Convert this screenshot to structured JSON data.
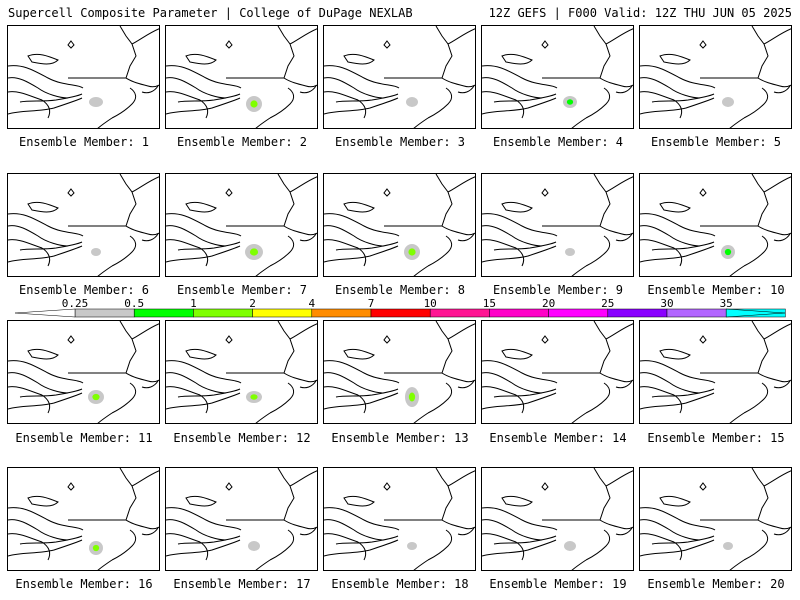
{
  "header": {
    "left": "Supercell Composite Parameter | College of DuPage NEXLAB",
    "right": "12Z GEFS | F000 Valid: 12Z THU JUN 05 2025"
  },
  "member_label_prefix": "Ensemble Member: ",
  "members": [
    {
      "number": "1",
      "field": [
        {
          "cx": "low",
          "cy": "mid",
          "level": 0.25
        }
      ]
    },
    {
      "number": "2",
      "field": [
        {
          "level": 1
        }
      ]
    },
    {
      "number": "3",
      "field": [
        {
          "level": 0.25
        }
      ]
    },
    {
      "number": "4",
      "field": [
        {
          "level": 0.5
        }
      ]
    },
    {
      "number": "5",
      "field": [
        {
          "level": 0.25
        }
      ]
    },
    {
      "number": "6",
      "field": [
        {
          "level": 0.25
        }
      ]
    },
    {
      "number": "7",
      "field": [
        {
          "level": 1
        }
      ]
    },
    {
      "number": "8",
      "field": [
        {
          "level": 1
        }
      ]
    },
    {
      "number": "9",
      "field": [
        {
          "level": 0.25
        }
      ]
    },
    {
      "number": "10",
      "field": [
        {
          "level": 0.5
        }
      ]
    },
    {
      "number": "11",
      "field": [
        {
          "level": 1
        }
      ]
    },
    {
      "number": "12",
      "field": [
        {
          "level": 1
        }
      ]
    },
    {
      "number": "13",
      "field": [
        {
          "level": 1
        }
      ]
    },
    {
      "number": "14",
      "field": []
    },
    {
      "number": "15",
      "field": []
    },
    {
      "number": "16",
      "field": [
        {
          "level": 1
        }
      ]
    },
    {
      "number": "17",
      "field": [
        {
          "level": 0.25
        }
      ]
    },
    {
      "number": "18",
      "field": [
        {
          "level": 0.25
        }
      ]
    },
    {
      "number": "19",
      "field": [
        {
          "level": 0.25
        }
      ]
    },
    {
      "number": "20",
      "field": [
        {
          "level": 0.25
        }
      ]
    }
  ],
  "colorbar": {
    "ticks": [
      "0.25",
      "0.5",
      "1",
      "2",
      "4",
      "7",
      "10",
      "15",
      "20",
      "25",
      "30",
      "35"
    ],
    "colors": [
      "#c8c8c8",
      "#00ff00",
      "#7fff00",
      "#ffff00",
      "#ff8c00",
      "#ff0000",
      "#ff1493",
      "#ff00c8",
      "#ff00ff",
      "#8a00ff",
      "#b266ff",
      "#00ffff"
    ]
  }
}
